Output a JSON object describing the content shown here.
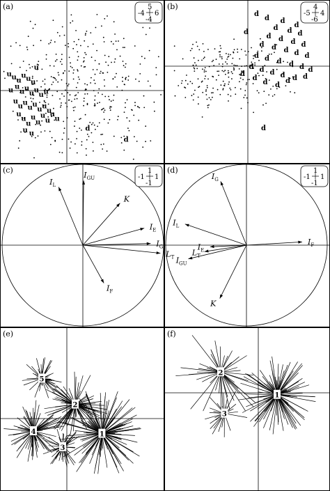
{
  "chart_data": [
    {
      "panel": "(a)",
      "type": "scatter",
      "scale": {
        "left": "-4",
        "top": "5",
        "bottom": "-4",
        "right": "6"
      },
      "point_markers": "dot",
      "labelled_points": [
        {
          "label": "u",
          "x": -3.6,
          "y": 0.9
        },
        {
          "label": "u",
          "x": -3.3,
          "y": 0.7
        },
        {
          "label": "u",
          "x": -3.0,
          "y": 0.5
        },
        {
          "label": "u",
          "x": -2.7,
          "y": 0.8
        },
        {
          "label": "u",
          "x": -2.4,
          "y": 0.6
        },
        {
          "label": "u",
          "x": -2.1,
          "y": 0.4
        },
        {
          "label": "u",
          "x": -3.5,
          "y": -0.1
        },
        {
          "label": "u",
          "x": -3.1,
          "y": 0.1
        },
        {
          "label": "u",
          "x": -2.8,
          "y": -0.2
        },
        {
          "label": "u",
          "x": -2.5,
          "y": 0.0
        },
        {
          "label": "u",
          "x": -2.2,
          "y": -0.3
        },
        {
          "label": "u",
          "x": -1.9,
          "y": -0.1
        },
        {
          "label": "u",
          "x": -1.6,
          "y": -0.4
        },
        {
          "label": "u",
          "x": -1.3,
          "y": -0.2
        },
        {
          "label": "u",
          "x": -3.2,
          "y": -0.8
        },
        {
          "label": "u",
          "x": -2.9,
          "y": -1.1
        },
        {
          "label": "u",
          "x": -2.6,
          "y": -0.9
        },
        {
          "label": "u",
          "x": -2.3,
          "y": -1.2
        },
        {
          "label": "u",
          "x": -2.0,
          "y": -1.0
        },
        {
          "label": "u",
          "x": -1.7,
          "y": -1.3
        },
        {
          "label": "u",
          "x": -1.4,
          "y": -1.1
        },
        {
          "label": "u",
          "x": -1.1,
          "y": -1.4
        },
        {
          "label": "u",
          "x": -3.0,
          "y": -1.6
        },
        {
          "label": "u",
          "x": -2.7,
          "y": -1.9
        },
        {
          "label": "u",
          "x": -2.4,
          "y": -2.2
        },
        {
          "label": "u",
          "x": -2.1,
          "y": -1.8
        },
        {
          "label": "u",
          "x": -1.8,
          "y": -2.1
        },
        {
          "label": "u",
          "x": -1.5,
          "y": -1.7
        },
        {
          "label": "u",
          "x": -1.2,
          "y": -2.0
        },
        {
          "label": "u",
          "x": -0.9,
          "y": -1.6
        },
        {
          "label": "u",
          "x": -2.6,
          "y": -2.6
        },
        {
          "label": "u",
          "x": -2.2,
          "y": -2.8
        },
        {
          "label": "u",
          "x": -0.6,
          "y": -1.9
        },
        {
          "label": "u",
          "x": -1.9,
          "y": 1.3
        },
        {
          "label": "d",
          "x": 3.7,
          "y": -3.2
        },
        {
          "label": "d",
          "x": 1.3,
          "y": -2.5
        }
      ]
    },
    {
      "panel": "(b)",
      "type": "scatter",
      "scale": {
        "left": "-5",
        "top": "4",
        "bottom": "-6",
        "right": "4"
      },
      "point_markers": "dot",
      "labelled_points": [
        {
          "label": "d",
          "x": 1.1,
          "y": 3.3
        },
        {
          "label": "d",
          "x": 2.0,
          "y": 3.1
        },
        {
          "label": "d",
          "x": 1.6,
          "y": 2.6
        },
        {
          "label": "d",
          "x": 2.4,
          "y": 2.4
        },
        {
          "label": "d",
          "x": 3.0,
          "y": 2.2
        },
        {
          "label": "d",
          "x": 1.2,
          "y": 2.0
        },
        {
          "label": "d",
          "x": 1.9,
          "y": 1.8
        },
        {
          "label": "d",
          "x": 2.6,
          "y": 1.6
        },
        {
          "label": "d",
          "x": 3.2,
          "y": 1.4
        },
        {
          "label": "d",
          "x": 0.8,
          "y": 1.4
        },
        {
          "label": "d",
          "x": 1.5,
          "y": 1.2
        },
        {
          "label": "d",
          "x": 2.2,
          "y": 1.0
        },
        {
          "label": "d",
          "x": 2.8,
          "y": 0.8
        },
        {
          "label": "d",
          "x": 3.4,
          "y": 0.6
        },
        {
          "label": "d",
          "x": 0.5,
          "y": 0.6
        },
        {
          "label": "d",
          "x": 1.1,
          "y": 0.4
        },
        {
          "label": "d",
          "x": 1.8,
          "y": 0.2
        },
        {
          "label": "d",
          "x": 2.5,
          "y": 0.0
        },
        {
          "label": "d",
          "x": 3.1,
          "y": -0.2
        },
        {
          "label": "d",
          "x": 3.6,
          "y": -0.4
        },
        {
          "label": "d",
          "x": 0.2,
          "y": -0.2
        },
        {
          "label": "d",
          "x": 0.8,
          "y": -0.4
        },
        {
          "label": "d",
          "x": 1.4,
          "y": -0.6
        },
        {
          "label": "d",
          "x": 2.0,
          "y": -0.8
        },
        {
          "label": "d",
          "x": 2.7,
          "y": -1.0
        },
        {
          "label": "d",
          "x": 3.3,
          "y": -0.9
        },
        {
          "label": "d",
          "x": -0.3,
          "y": -0.7
        },
        {
          "label": "d",
          "x": 0.4,
          "y": -1.0
        },
        {
          "label": "d",
          "x": 1.0,
          "y": -1.3
        },
        {
          "label": "d",
          "x": 1.7,
          "y": -1.5
        },
        {
          "label": "d",
          "x": 2.3,
          "y": -1.2
        },
        {
          "label": "d",
          "x": -0.1,
          "y": 2.3
        },
        {
          "label": "d",
          "x": 0.5,
          "y": 3.6
        },
        {
          "label": "d",
          "x": 2.8,
          "y": 2.8
        },
        {
          "label": "d",
          "x": 0.9,
          "y": -4.6
        }
      ]
    },
    {
      "panel": "(c)",
      "type": "vector",
      "scale": {
        "left": "-1",
        "top": "1",
        "bottom": "-1",
        "right": "1"
      },
      "vectors": [
        {
          "name": "I",
          "sub": "L",
          "x": -0.3,
          "y": 0.72
        },
        {
          "name": "I",
          "sub": "GU",
          "x": 0.01,
          "y": 0.8
        },
        {
          "name": "K",
          "x": 0.46,
          "y": 0.52
        },
        {
          "name": "I",
          "sub": "E",
          "x": 0.76,
          "y": 0.21
        },
        {
          "name": "I",
          "sub": "G",
          "x": 0.84,
          "y": 0.02
        },
        {
          "name": "L",
          "sub": "T",
          "x": 0.96,
          "y": -0.1
        },
        {
          "name": "I",
          "sub": "F",
          "x": 0.26,
          "y": -0.47
        }
      ]
    },
    {
      "panel": "(d)",
      "type": "vector",
      "scale": {
        "left": "-1",
        "top": "1",
        "bottom": "-1",
        "right": "1"
      },
      "vectors": [
        {
          "name": "I",
          "sub": "G",
          "x": -0.32,
          "y": 0.79
        },
        {
          "name": "I",
          "sub": "L",
          "x": -0.76,
          "y": 0.26
        },
        {
          "name": "I",
          "sub": "F",
          "x": 0.69,
          "y": 0.04
        },
        {
          "name": "I",
          "sub": "E",
          "x": -0.45,
          "y": -0.02
        },
        {
          "name": "L",
          "sub": "T",
          "x": -0.52,
          "y": -0.08
        },
        {
          "name": "I",
          "sub": "GU",
          "x": -0.72,
          "y": -0.17
        },
        {
          "name": "K",
          "x": -0.33,
          "y": -0.66
        }
      ]
    },
    {
      "panel": "(e)",
      "type": "scatter",
      "clusters": [
        {
          "label": "1",
          "x": 0.42,
          "y": -0.18
        },
        {
          "label": "2",
          "x": 0.1,
          "y": 0.17
        },
        {
          "label": "3",
          "x": -0.05,
          "y": -0.34
        },
        {
          "label": "4",
          "x": -0.4,
          "y": -0.15
        },
        {
          "label": "5",
          "x": -0.3,
          "y": 0.48
        }
      ]
    },
    {
      "panel": "(f)",
      "type": "scatter",
      "clusters": [
        {
          "label": "1",
          "x": 0.2,
          "y": -0.02
        },
        {
          "label": "2",
          "x": -0.4,
          "y": 0.22
        },
        {
          "label": "3",
          "x": -0.36,
          "y": -0.22
        }
      ]
    }
  ]
}
